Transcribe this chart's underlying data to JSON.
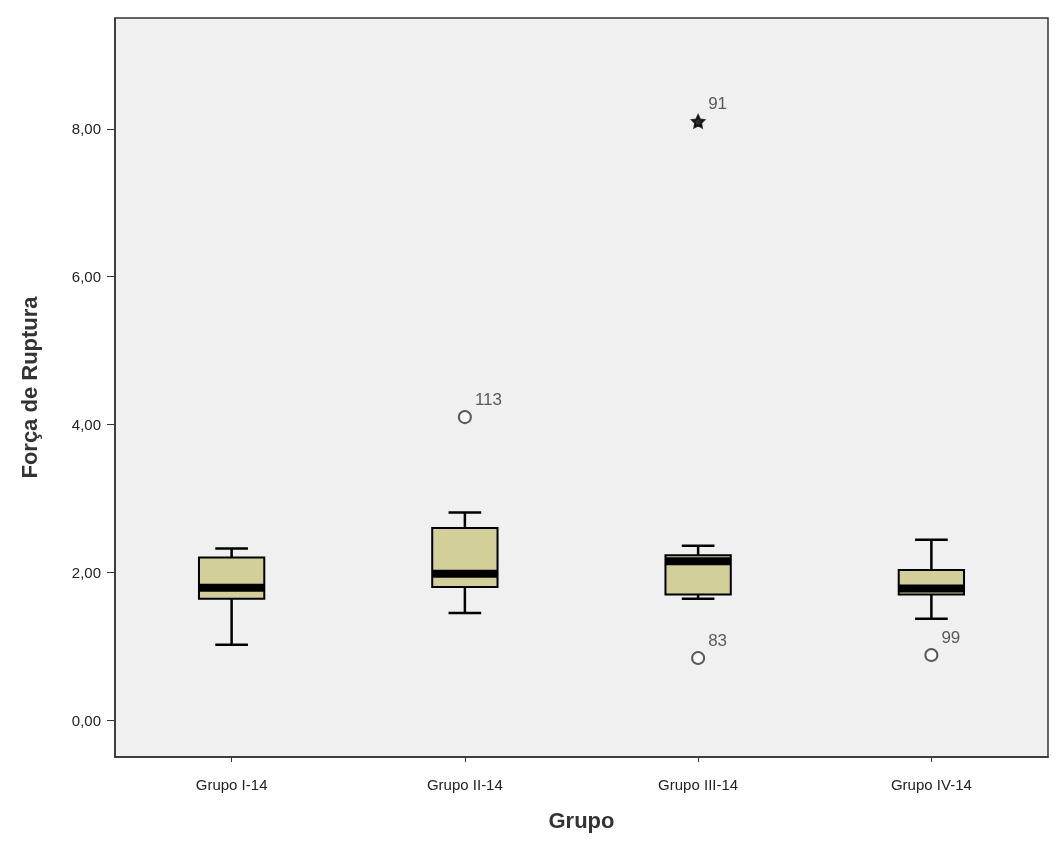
{
  "chart_data": {
    "type": "box",
    "xlabel": "Grupo",
    "ylabel": "Força de Ruptura",
    "categories": [
      "Grupo I-14",
      "Grupo II-14",
      "Grupo III-14",
      "Grupo IV-14"
    ],
    "color": "#d3cf98",
    "boxes": [
      {
        "low": 1.02,
        "q1": 1.64,
        "median": 1.79,
        "q3": 2.2,
        "high": 2.32
      },
      {
        "low": 1.45,
        "q1": 1.8,
        "median": 1.98,
        "q3": 2.6,
        "high": 2.81
      },
      {
        "low": 1.64,
        "q1": 1.7,
        "median": 2.15,
        "q3": 2.23,
        "high": 2.36
      },
      {
        "low": 1.37,
        "q1": 1.7,
        "median": 1.78,
        "q3": 2.03,
        "high": 2.44
      }
    ],
    "series": [
      {
        "type": "scatter",
        "marker": "circle",
        "color": "#333333",
        "x": [
          "Grupo II-14",
          "Grupo III-14",
          "Grupo IV-14"
        ],
        "values": [
          4.1,
          0.84,
          0.88
        ]
      },
      {
        "type": "scatter",
        "marker": "star",
        "color": "#000000",
        "x": [
          "Grupo III-14"
        ],
        "values": [
          8.1
        ]
      }
    ],
    "annotations": [
      {
        "text": "113",
        "x": "Grupo II-14",
        "y": 4.1
      },
      {
        "text": "91",
        "x": "Grupo III-14",
        "y": 8.1
      },
      {
        "text": "83",
        "x": "Grupo III-14",
        "y": 0.84
      },
      {
        "text": "99",
        "x": "Grupo IV-14",
        "y": 0.88
      }
    ],
    "ylim": [
      -0.5,
      9.5
    ],
    "yticks": [
      {
        "value": 0,
        "label": "0,00"
      },
      {
        "value": 2,
        "label": "2,00"
      },
      {
        "value": 4,
        "label": "4,00"
      },
      {
        "value": 6,
        "label": "6,00"
      },
      {
        "value": 8,
        "label": "8,00"
      }
    ]
  }
}
